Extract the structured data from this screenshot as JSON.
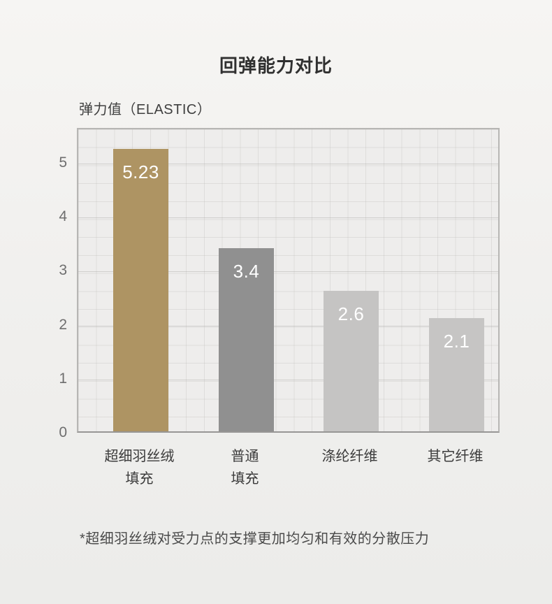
{
  "page": {
    "title": "回弹能力对比",
    "footnote": "*超细羽丝绒对受力点的支撑更加均匀和有效的分散压力"
  },
  "chart_data": {
    "type": "bar",
    "title": "回弹能力对比",
    "ylabel": "弹力值（ELASTIC）",
    "xlabel": "",
    "categories": [
      "超细羽丝绒\n填充",
      "普通\n填充",
      "涤纶纤维",
      "其它纤维"
    ],
    "values": [
      5.23,
      3.4,
      2.6,
      2.1
    ],
    "value_labels": [
      "5.23",
      "3.4",
      "2.6",
      "2.1"
    ],
    "bar_colors": [
      "#ae9463",
      "#909090",
      "#c5c4c3",
      "#c6c5c4"
    ],
    "value_label_color": "#ffffff",
    "yticks": [
      0,
      1,
      2,
      3,
      4,
      5
    ],
    "ylim": [
      0,
      5.65
    ],
    "grid": true,
    "legend": "none"
  }
}
